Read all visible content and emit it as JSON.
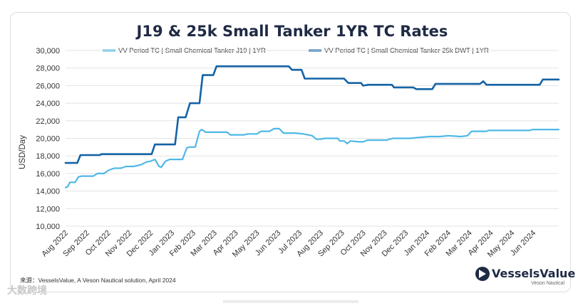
{
  "chart_data": {
    "type": "line",
    "title": "J19 & 25k Small Tanker 1YR TC Rates",
    "ylabel": "USD/Day",
    "xlabel": "",
    "ylim": [
      10000,
      30000
    ],
    "yticks": [
      10000,
      12000,
      14000,
      16000,
      18000,
      20000,
      22000,
      24000,
      26000,
      28000,
      30000
    ],
    "ytick_labels": [
      "10,000",
      "12,000",
      "14,000",
      "16,000",
      "18,000",
      "20,000",
      "22,000",
      "24,000",
      "26,000",
      "28,000",
      "30,000"
    ],
    "xlim": [
      0,
      23.2
    ],
    "categories": [
      "Aug 2022",
      "Sep 2022",
      "Oct 2022",
      "Nov 2022",
      "Dec 2022",
      "Jan 2023",
      "Feb 2023",
      "Mar 2023",
      "Apr 2023",
      "May 2023",
      "Jun 2023",
      "Jul 2023",
      "Aug 2023",
      "Sep 2023",
      "Oct 2023",
      "Nov 2023",
      "Dec 2023",
      "Jan 2024",
      "Feb 2024",
      "Mar 2024",
      "Apr 2024",
      "May 2024",
      "Jun 2024"
    ],
    "legend_position": "top",
    "series": [
      {
        "name": "VV Period TC | Small Chemical Tanker J19 | 1YR",
        "color": "#4fb8e6",
        "points": [
          [
            0,
            14400
          ],
          [
            0.1,
            14500
          ],
          [
            0.2,
            15000
          ],
          [
            0.45,
            15000
          ],
          [
            0.6,
            15600
          ],
          [
            0.75,
            15700
          ],
          [
            1.3,
            15700
          ],
          [
            1.5,
            16000
          ],
          [
            1.8,
            16000
          ],
          [
            2.05,
            16400
          ],
          [
            2.3,
            16600
          ],
          [
            2.6,
            16600
          ],
          [
            2.85,
            16800
          ],
          [
            3.2,
            16800
          ],
          [
            3.55,
            17000
          ],
          [
            3.8,
            17300
          ],
          [
            4.0,
            17400
          ],
          [
            4.2,
            17600
          ],
          [
            4.4,
            16800
          ],
          [
            4.5,
            16700
          ],
          [
            4.7,
            17400
          ],
          [
            4.9,
            17600
          ],
          [
            5.5,
            17600
          ],
          [
            5.7,
            18900
          ],
          [
            5.8,
            19000
          ],
          [
            6.1,
            19000
          ],
          [
            6.3,
            20800
          ],
          [
            6.4,
            21000
          ],
          [
            6.6,
            20700
          ],
          [
            7.6,
            20700
          ],
          [
            7.75,
            20400
          ],
          [
            8.4,
            20400
          ],
          [
            8.55,
            20500
          ],
          [
            9.0,
            20500
          ],
          [
            9.2,
            20800
          ],
          [
            9.6,
            20800
          ],
          [
            9.8,
            21100
          ],
          [
            10.05,
            21100
          ],
          [
            10.25,
            20600
          ],
          [
            10.8,
            20600
          ],
          [
            11.2,
            20500
          ],
          [
            11.6,
            20300
          ],
          [
            11.8,
            19900
          ],
          [
            12.0,
            19900
          ],
          [
            12.2,
            20000
          ],
          [
            12.8,
            20000
          ],
          [
            12.9,
            19700
          ],
          [
            13.1,
            19700
          ],
          [
            13.25,
            19400
          ],
          [
            13.4,
            19700
          ],
          [
            13.8,
            19600
          ],
          [
            14.0,
            19600
          ],
          [
            14.2,
            19800
          ],
          [
            14.9,
            19800
          ],
          [
            15.1,
            19800
          ],
          [
            15.4,
            20000
          ],
          [
            16.2,
            20000
          ],
          [
            16.6,
            20100
          ],
          [
            17.1,
            20200
          ],
          [
            17.6,
            20200
          ],
          [
            18.0,
            20300
          ],
          [
            18.6,
            20200
          ],
          [
            18.9,
            20300
          ],
          [
            19.1,
            20800
          ],
          [
            19.8,
            20800
          ],
          [
            19.9,
            20900
          ],
          [
            21.8,
            20900
          ],
          [
            22.0,
            21000
          ],
          [
            23.2,
            21000
          ]
        ]
      },
      {
        "name": "VV Period TC | Small Chemical Tanker 25k DWT | 1YR",
        "color": "#1463a6",
        "points": [
          [
            0,
            17200
          ],
          [
            0.55,
            17200
          ],
          [
            0.7,
            18100
          ],
          [
            1.6,
            18100
          ],
          [
            1.7,
            18200
          ],
          [
            4.05,
            18200
          ],
          [
            4.2,
            19300
          ],
          [
            5.15,
            19300
          ],
          [
            5.3,
            22400
          ],
          [
            5.65,
            22400
          ],
          [
            5.85,
            24000
          ],
          [
            6.3,
            24000
          ],
          [
            6.45,
            27200
          ],
          [
            6.95,
            27200
          ],
          [
            7.1,
            28200
          ],
          [
            10.5,
            28200
          ],
          [
            10.65,
            27800
          ],
          [
            11.1,
            27800
          ],
          [
            11.25,
            26800
          ],
          [
            13.1,
            26800
          ],
          [
            13.3,
            26300
          ],
          [
            13.9,
            26300
          ],
          [
            14.0,
            26000
          ],
          [
            14.25,
            26100
          ],
          [
            15.35,
            26100
          ],
          [
            15.45,
            25800
          ],
          [
            16.35,
            25800
          ],
          [
            16.5,
            25600
          ],
          [
            17.25,
            25600
          ],
          [
            17.4,
            26200
          ],
          [
            19.5,
            26200
          ],
          [
            19.65,
            26500
          ],
          [
            19.8,
            26100
          ],
          [
            22.3,
            26100
          ],
          [
            22.45,
            26700
          ],
          [
            23.2,
            26700
          ]
        ]
      }
    ]
  },
  "source": "来源：VesselsValue, A Veson Nautical solution, April 2024",
  "logo": {
    "name": "VesselsValue",
    "sub": "Veson Nautical"
  },
  "watermark": "大数跨境"
}
